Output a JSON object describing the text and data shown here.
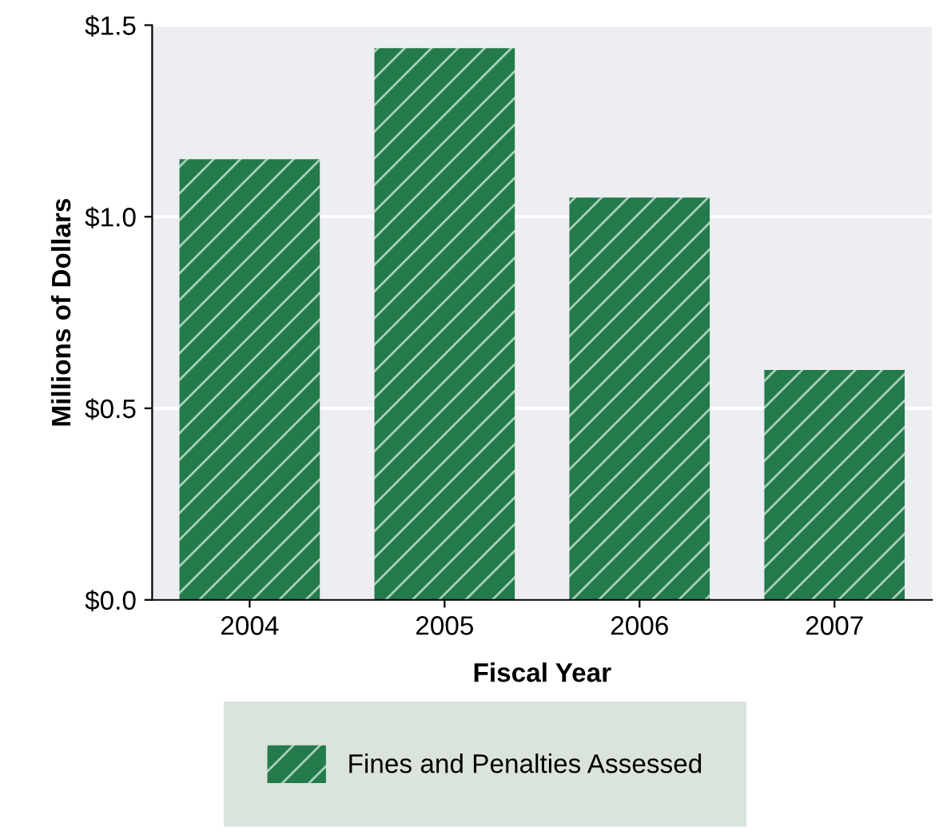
{
  "chart_data": {
    "type": "bar",
    "xlabel": "Fiscal Year",
    "ylabel": "Millions of Dollars",
    "categories": [
      "2004",
      "2005",
      "2006",
      "2007"
    ],
    "series": [
      {
        "name": "Fines and Penalties Assessed",
        "color": "#237a4b",
        "values": [
          1.15,
          1.44,
          1.05,
          0.6
        ]
      }
    ],
    "ylim": [
      0,
      1.5
    ],
    "yticks": [
      {
        "value": 0,
        "label": "$0.0"
      },
      {
        "value": 0.5,
        "label": "$0.5"
      },
      {
        "value": 1.0,
        "label": "$1.0"
      },
      {
        "value": 1.5,
        "label": "$1.5"
      }
    ],
    "grid": "y",
    "legend": "bottom"
  }
}
